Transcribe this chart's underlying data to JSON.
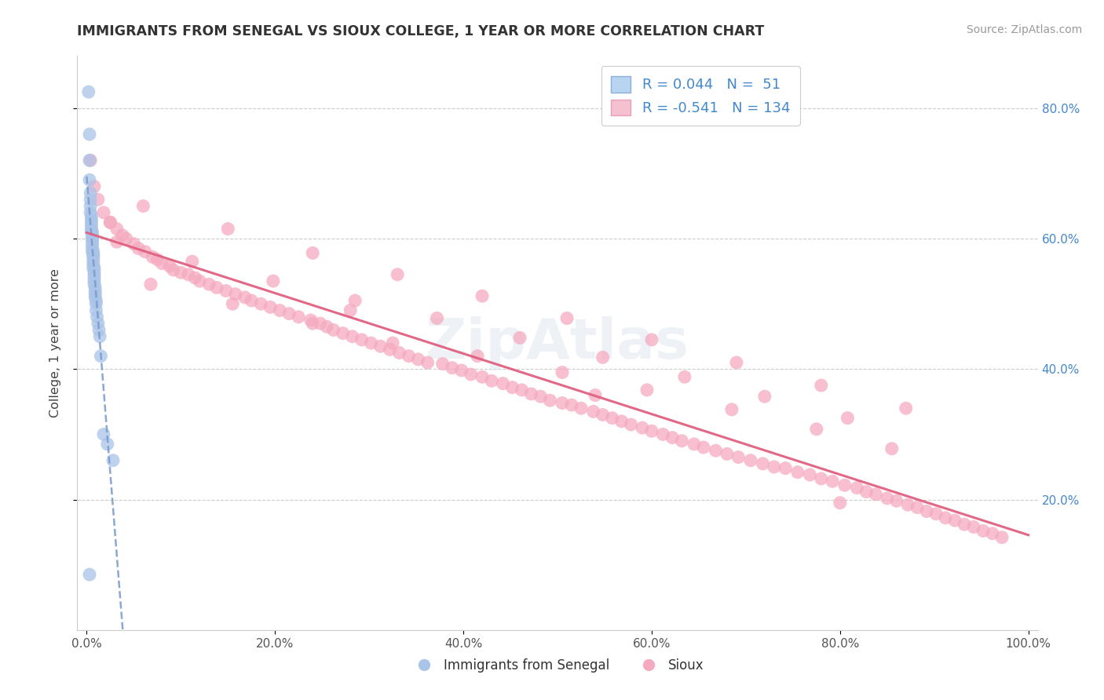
{
  "title": "IMMIGRANTS FROM SENEGAL VS SIOUX COLLEGE, 1 YEAR OR MORE CORRELATION CHART",
  "source": "Source: ZipAtlas.com",
  "ylabel": "College, 1 year or more",
  "legend_label1": "Immigrants from Senegal",
  "legend_label2": "Sioux",
  "R1": 0.044,
  "N1": 51,
  "R2": -0.541,
  "N2": 134,
  "color_blue": "#aac4e8",
  "color_pink": "#f5aabf",
  "trendline_blue": "#7799cc",
  "trendline_pink": "#e06080",
  "xlim": [
    -0.01,
    1.01
  ],
  "ylim": [
    0.0,
    0.88
  ],
  "xticks": [
    0.0,
    0.2,
    0.4,
    0.6,
    0.8,
    1.0
  ],
  "yticks": [
    0.2,
    0.4,
    0.6,
    0.8
  ],
  "xticklabels": [
    "0.0%",
    "20.0%",
    "40.0%",
    "60.0%",
    "80.0%",
    "100.0%"
  ],
  "yticklabels": [
    "20.0%",
    "40.0%",
    "60.0%",
    "80.0%"
  ],
  "watermark": "ZipAtlas",
  "legend_text_color": "#4488cc",
  "source_color": "#999999",
  "title_color": "#333333",
  "blue_x": [
    0.002,
    0.003,
    0.003,
    0.003,
    0.004,
    0.004,
    0.004,
    0.004,
    0.005,
    0.005,
    0.005,
    0.005,
    0.005,
    0.005,
    0.006,
    0.006,
    0.006,
    0.006,
    0.006,
    0.006,
    0.006,
    0.006,
    0.007,
    0.007,
    0.007,
    0.007,
    0.007,
    0.007,
    0.007,
    0.008,
    0.008,
    0.008,
    0.008,
    0.008,
    0.008,
    0.009,
    0.009,
    0.009,
    0.009,
    0.01,
    0.01,
    0.01,
    0.011,
    0.012,
    0.013,
    0.014,
    0.015,
    0.018,
    0.022,
    0.028,
    0.003
  ],
  "blue_y": [
    0.825,
    0.76,
    0.72,
    0.69,
    0.67,
    0.66,
    0.65,
    0.64,
    0.635,
    0.63,
    0.625,
    0.62,
    0.615,
    0.61,
    0.61,
    0.605,
    0.6,
    0.6,
    0.595,
    0.59,
    0.585,
    0.58,
    0.58,
    0.575,
    0.575,
    0.57,
    0.565,
    0.56,
    0.555,
    0.555,
    0.55,
    0.545,
    0.54,
    0.535,
    0.53,
    0.525,
    0.52,
    0.515,
    0.51,
    0.505,
    0.5,
    0.49,
    0.48,
    0.47,
    0.46,
    0.45,
    0.42,
    0.3,
    0.285,
    0.26,
    0.085
  ],
  "pink_x": [
    0.004,
    0.008,
    0.012,
    0.018,
    0.025,
    0.032,
    0.038,
    0.042,
    0.05,
    0.055,
    0.062,
    0.07,
    0.075,
    0.08,
    0.088,
    0.092,
    0.1,
    0.108,
    0.115,
    0.12,
    0.13,
    0.138,
    0.148,
    0.158,
    0.168,
    0.175,
    0.185,
    0.195,
    0.205,
    0.215,
    0.225,
    0.238,
    0.248,
    0.255,
    0.262,
    0.272,
    0.282,
    0.292,
    0.302,
    0.312,
    0.322,
    0.332,
    0.342,
    0.352,
    0.362,
    0.378,
    0.388,
    0.398,
    0.408,
    0.42,
    0.43,
    0.442,
    0.452,
    0.462,
    0.472,
    0.482,
    0.492,
    0.505,
    0.515,
    0.525,
    0.538,
    0.548,
    0.558,
    0.568,
    0.578,
    0.59,
    0.6,
    0.612,
    0.622,
    0.632,
    0.645,
    0.655,
    0.668,
    0.68,
    0.692,
    0.705,
    0.718,
    0.73,
    0.742,
    0.755,
    0.768,
    0.78,
    0.792,
    0.805,
    0.818,
    0.828,
    0.838,
    0.85,
    0.86,
    0.872,
    0.882,
    0.892,
    0.902,
    0.912,
    0.922,
    0.932,
    0.942,
    0.952,
    0.962,
    0.972,
    0.068,
    0.155,
    0.24,
    0.325,
    0.415,
    0.505,
    0.595,
    0.685,
    0.775,
    0.855,
    0.032,
    0.112,
    0.198,
    0.285,
    0.372,
    0.46,
    0.548,
    0.635,
    0.72,
    0.808,
    0.06,
    0.15,
    0.24,
    0.33,
    0.42,
    0.51,
    0.6,
    0.69,
    0.78,
    0.87,
    0.025,
    0.28,
    0.54,
    0.8
  ],
  "pink_y": [
    0.72,
    0.68,
    0.66,
    0.64,
    0.625,
    0.615,
    0.605,
    0.6,
    0.592,
    0.585,
    0.58,
    0.572,
    0.568,
    0.562,
    0.558,
    0.552,
    0.548,
    0.545,
    0.54,
    0.535,
    0.53,
    0.525,
    0.52,
    0.515,
    0.51,
    0.505,
    0.5,
    0.495,
    0.49,
    0.485,
    0.48,
    0.475,
    0.47,
    0.465,
    0.46,
    0.455,
    0.45,
    0.445,
    0.44,
    0.435,
    0.43,
    0.425,
    0.42,
    0.415,
    0.41,
    0.408,
    0.402,
    0.398,
    0.392,
    0.388,
    0.382,
    0.378,
    0.372,
    0.368,
    0.362,
    0.358,
    0.352,
    0.348,
    0.345,
    0.34,
    0.335,
    0.33,
    0.325,
    0.32,
    0.315,
    0.31,
    0.305,
    0.3,
    0.295,
    0.29,
    0.285,
    0.28,
    0.275,
    0.27,
    0.265,
    0.26,
    0.255,
    0.25,
    0.248,
    0.242,
    0.238,
    0.232,
    0.228,
    0.222,
    0.218,
    0.212,
    0.208,
    0.202,
    0.198,
    0.192,
    0.188,
    0.182,
    0.178,
    0.172,
    0.168,
    0.162,
    0.158,
    0.152,
    0.148,
    0.142,
    0.53,
    0.5,
    0.47,
    0.44,
    0.42,
    0.395,
    0.368,
    0.338,
    0.308,
    0.278,
    0.595,
    0.565,
    0.535,
    0.505,
    0.478,
    0.448,
    0.418,
    0.388,
    0.358,
    0.325,
    0.65,
    0.615,
    0.578,
    0.545,
    0.512,
    0.478,
    0.445,
    0.41,
    0.375,
    0.34,
    0.625,
    0.49,
    0.36,
    0.195
  ]
}
